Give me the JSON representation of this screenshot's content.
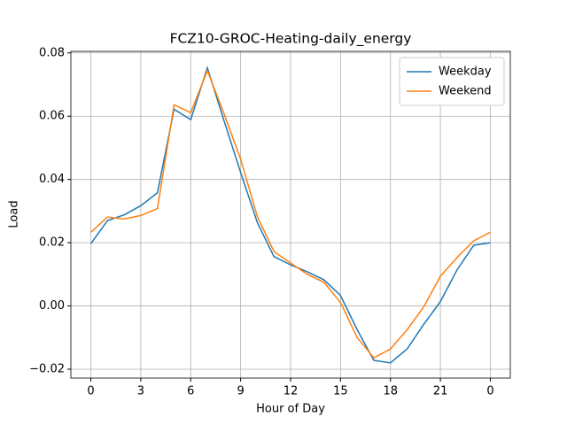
{
  "chart_data": {
    "type": "line",
    "title": "FCZ10-GROC-Heating-daily_energy",
    "x_label": "Hour of Day",
    "y_label": "Load",
    "x": [
      0,
      1,
      2,
      3,
      4,
      5,
      6,
      7,
      8,
      9,
      10,
      11,
      12,
      13,
      14,
      15,
      16,
      17,
      18,
      19,
      20,
      21,
      22,
      23,
      24
    ],
    "series": [
      {
        "name": "Weekday",
        "color": "#1f77b4",
        "values": [
          0.0197,
          0.027,
          0.0288,
          0.0317,
          0.0358,
          0.0622,
          0.0589,
          0.0753,
          0.0586,
          0.0422,
          0.0264,
          0.0156,
          0.013,
          0.0108,
          0.0083,
          0.0033,
          -0.0075,
          -0.0172,
          -0.018,
          -0.0136,
          -0.0058,
          0.0014,
          0.0114,
          0.0192,
          0.02
        ]
      },
      {
        "name": "Weekend",
        "color": "#ff7f0e",
        "values": [
          0.0233,
          0.0281,
          0.0275,
          0.0286,
          0.0308,
          0.0636,
          0.0611,
          0.0744,
          0.0608,
          0.0464,
          0.0283,
          0.0172,
          0.0136,
          0.01,
          0.0075,
          0.0011,
          -0.01,
          -0.0164,
          -0.0136,
          -0.0075,
          -0.0003,
          0.0094,
          0.0153,
          0.0206,
          0.0233
        ]
      }
    ],
    "xlim": [
      -1.2,
      25.2
    ],
    "xticks": [
      0,
      3,
      6,
      9,
      12,
      15,
      18,
      21,
      {
        "value": 24,
        "label": "0"
      }
    ],
    "ylim": [
      -0.0228,
      0.0805
    ],
    "yticks": [
      {
        "value": -0.02,
        "label": "−0.02"
      },
      {
        "value": 0,
        "label": "0.00"
      },
      0.02,
      0.04,
      0.06,
      0.08
    ],
    "grid": true,
    "legend": "upper right"
  }
}
